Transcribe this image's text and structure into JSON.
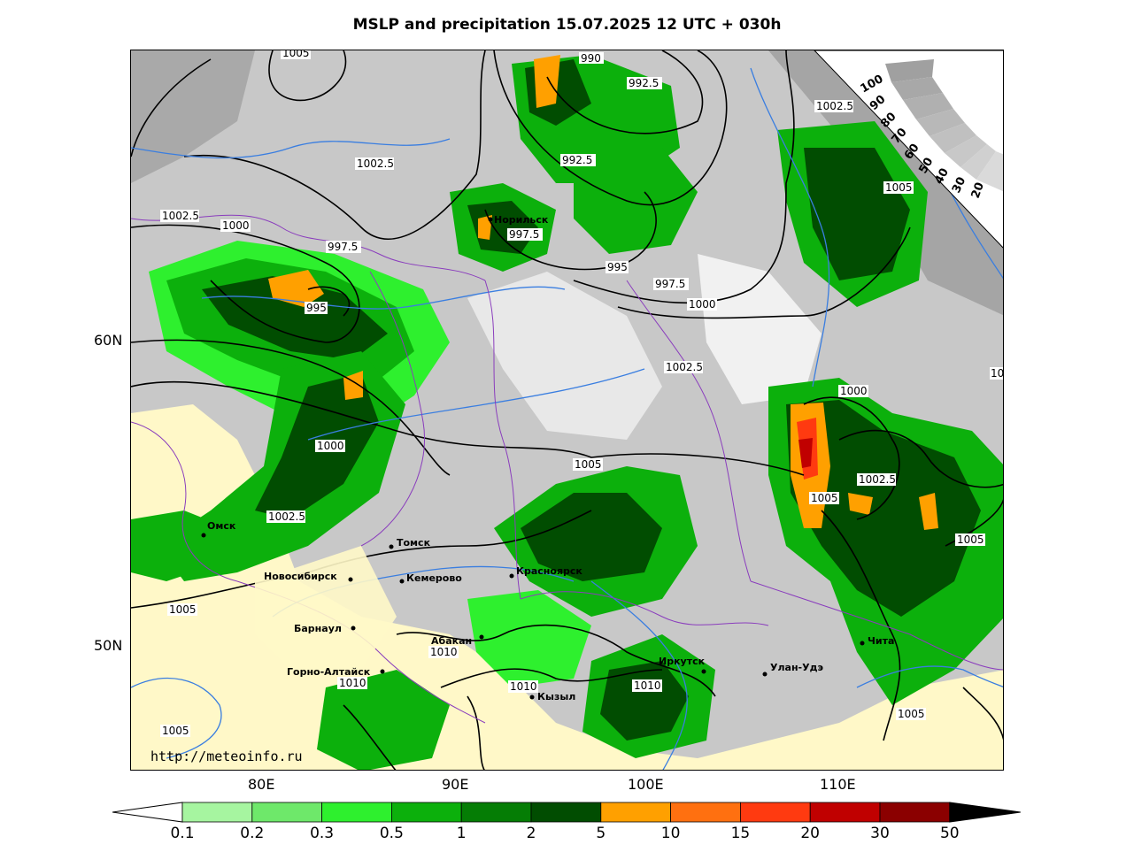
{
  "title": "MSLP and precipitation 15.07.2025 12 UTC + 030h",
  "url": "http://meteoinfo.ru",
  "axes": {
    "lat_labels": [
      "60N",
      "50N"
    ],
    "lon_labels": [
      "80E",
      "90E",
      "100E",
      "110E"
    ]
  },
  "cities": [
    {
      "name": "Норильск"
    },
    {
      "name": "Омск"
    },
    {
      "name": "Томск"
    },
    {
      "name": "Новосибирск"
    },
    {
      "name": "Кемерово"
    },
    {
      "name": "Красноярск"
    },
    {
      "name": "Барнаул"
    },
    {
      "name": "Абакан"
    },
    {
      "name": "Горно-Алтайск"
    },
    {
      "name": "Кызыл"
    },
    {
      "name": "Иркутск"
    },
    {
      "name": "Улан-Удэ"
    },
    {
      "name": "Чита"
    }
  ],
  "isobar_labels": [
    "1005",
    "990",
    "992.5",
    "1002.5",
    "992.5",
    "1002.5",
    "1002.5",
    "1000",
    "997.5",
    "997.5",
    "995",
    "995",
    "997.5",
    "1000",
    "1005",
    "60N",
    "1002.5",
    "1000",
    "1000",
    "1005",
    "1002.5",
    "1005",
    "1002.5",
    "1005",
    "1005",
    "1010",
    "1010",
    "1010",
    "1010",
    "1005",
    "1005",
    "10"
  ],
  "wind_scale_labels": [
    "100",
    "90",
    "80",
    "70",
    "60",
    "50",
    "40",
    "30",
    "20"
  ],
  "colorbar": {
    "ticks": [
      "0.1",
      "0.2",
      "0.3",
      "0.5",
      "1",
      "2",
      "5",
      "10",
      "15",
      "20",
      "30",
      "50"
    ],
    "colors": [
      "#a6f5a0",
      "#6ee86a",
      "#2ef02e",
      "#0cb00c",
      "#057d05",
      "#014d01",
      "#ffa000",
      "#ff7010",
      "#ff3a10",
      "#c00000",
      "#8b0000"
    ],
    "under_color": "#ffffff",
    "over_color": "#000000"
  }
}
